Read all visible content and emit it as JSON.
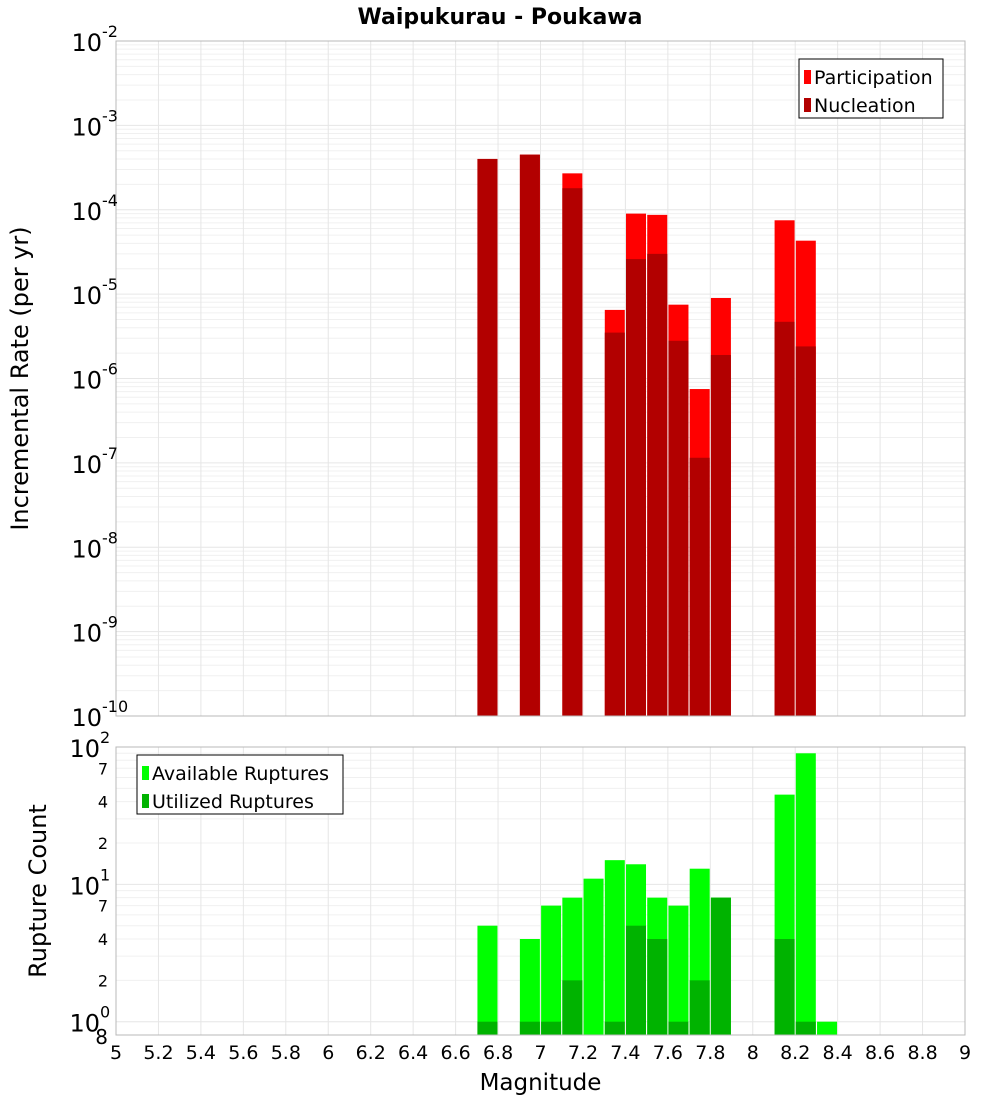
{
  "chart_data": [
    {
      "type": "bar",
      "title": "Waipukurau - Poukawa",
      "ylabel": "Incremental Rate (per yr)",
      "yscale": "log",
      "ylim": [
        1e-10,
        0.01
      ],
      "xlim": [
        5,
        9
      ],
      "grid": true,
      "legend": {
        "placement": "top-right",
        "entries": [
          "Participation",
          "Nucleation"
        ]
      },
      "colors": {
        "Participation": "#ff0000",
        "Nucleation": "#b20000"
      },
      "y_ticks": [
        {
          "base": "10",
          "exp": "-2"
        },
        {
          "base": "10",
          "exp": "-3"
        },
        {
          "base": "10",
          "exp": "-4"
        },
        {
          "base": "10",
          "exp": "-5"
        },
        {
          "base": "10",
          "exp": "-6"
        },
        {
          "base": "10",
          "exp": "-7"
        },
        {
          "base": "10",
          "exp": "-8"
        },
        {
          "base": "10",
          "exp": "-9"
        },
        {
          "base": "10",
          "exp": "-10"
        }
      ],
      "x": [
        6.75,
        6.95,
        7.15,
        7.35,
        7.45,
        7.55,
        7.65,
        7.75,
        7.85,
        8.15,
        8.25
      ],
      "series": [
        {
          "name": "Participation",
          "values": [
            0.0004,
            0.00045,
            0.00027,
            6.5e-06,
            9e-05,
            8.7e-05,
            7.5e-06,
            7.5e-07,
            9e-06,
            7.5e-05,
            4.3e-05
          ]
        },
        {
          "name": "Nucleation",
          "values": [
            0.0004,
            0.00045,
            0.00018,
            3.5e-06,
            2.6e-05,
            3e-05,
            2.8e-06,
            1.15e-07,
            1.9e-06,
            4.7e-06,
            2.4e-06
          ]
        }
      ]
    },
    {
      "type": "bar",
      "xlabel": "Magnitude",
      "ylabel": "Rupture Count",
      "yscale": "log",
      "ylim": [
        0.8,
        100
      ],
      "xlim": [
        5,
        9
      ],
      "grid": true,
      "legend": {
        "placement": "top-left",
        "entries": [
          "Available Ruptures",
          "Utilized Ruptures"
        ]
      },
      "colors": {
        "Available Ruptures": "#00ff00",
        "Utilized Ruptures": "#00b300"
      },
      "x_ticks": [
        "5",
        "5.2",
        "5.4",
        "5.6",
        "5.8",
        "6",
        "6.2",
        "6.4",
        "6.6",
        "6.8",
        "7",
        "7.2",
        "7.4",
        "7.6",
        "7.8",
        "8",
        "8.2",
        "8.4",
        "8.6",
        "8.8",
        "9"
      ],
      "y_major_ticks": [
        {
          "base": "10",
          "exp": "2"
        },
        {
          "base": "10",
          "exp": "1"
        },
        {
          "base": "10",
          "exp": "0"
        }
      ],
      "y_minor_labels": [
        "7",
        "4",
        "2",
        "7",
        "4",
        "2"
      ],
      "y_bottom_label": "8",
      "x": [
        6.75,
        6.95,
        7.05,
        7.15,
        7.25,
        7.35,
        7.45,
        7.55,
        7.65,
        7.75,
        7.85,
        8.15,
        8.25,
        8.35
      ],
      "series": [
        {
          "name": "Available Ruptures",
          "values": [
            5,
            4,
            7,
            8,
            11,
            15,
            14,
            8,
            7,
            13,
            8,
            45,
            90,
            1
          ]
        },
        {
          "name": "Utilized Ruptures",
          "values": [
            1,
            1,
            1,
            2,
            0,
            1,
            5,
            4,
            1,
            2,
            8,
            4,
            1,
            0
          ]
        }
      ]
    }
  ]
}
